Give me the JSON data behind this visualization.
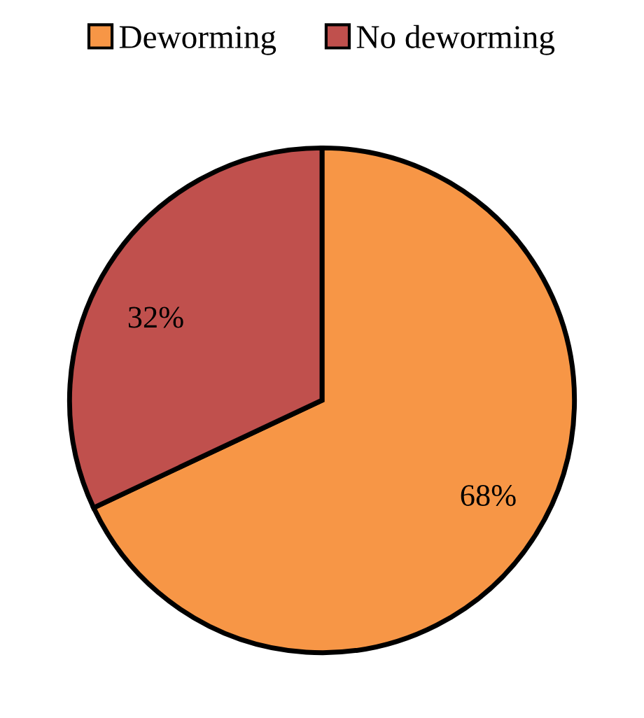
{
  "chart_data": {
    "type": "pie",
    "categories": [
      "Deworming",
      "No deworming"
    ],
    "values": [
      68,
      32
    ],
    "colors": [
      "#f79646",
      "#c0504d"
    ],
    "value_labels": [
      "68%",
      "32%"
    ],
    "legend": "top"
  }
}
